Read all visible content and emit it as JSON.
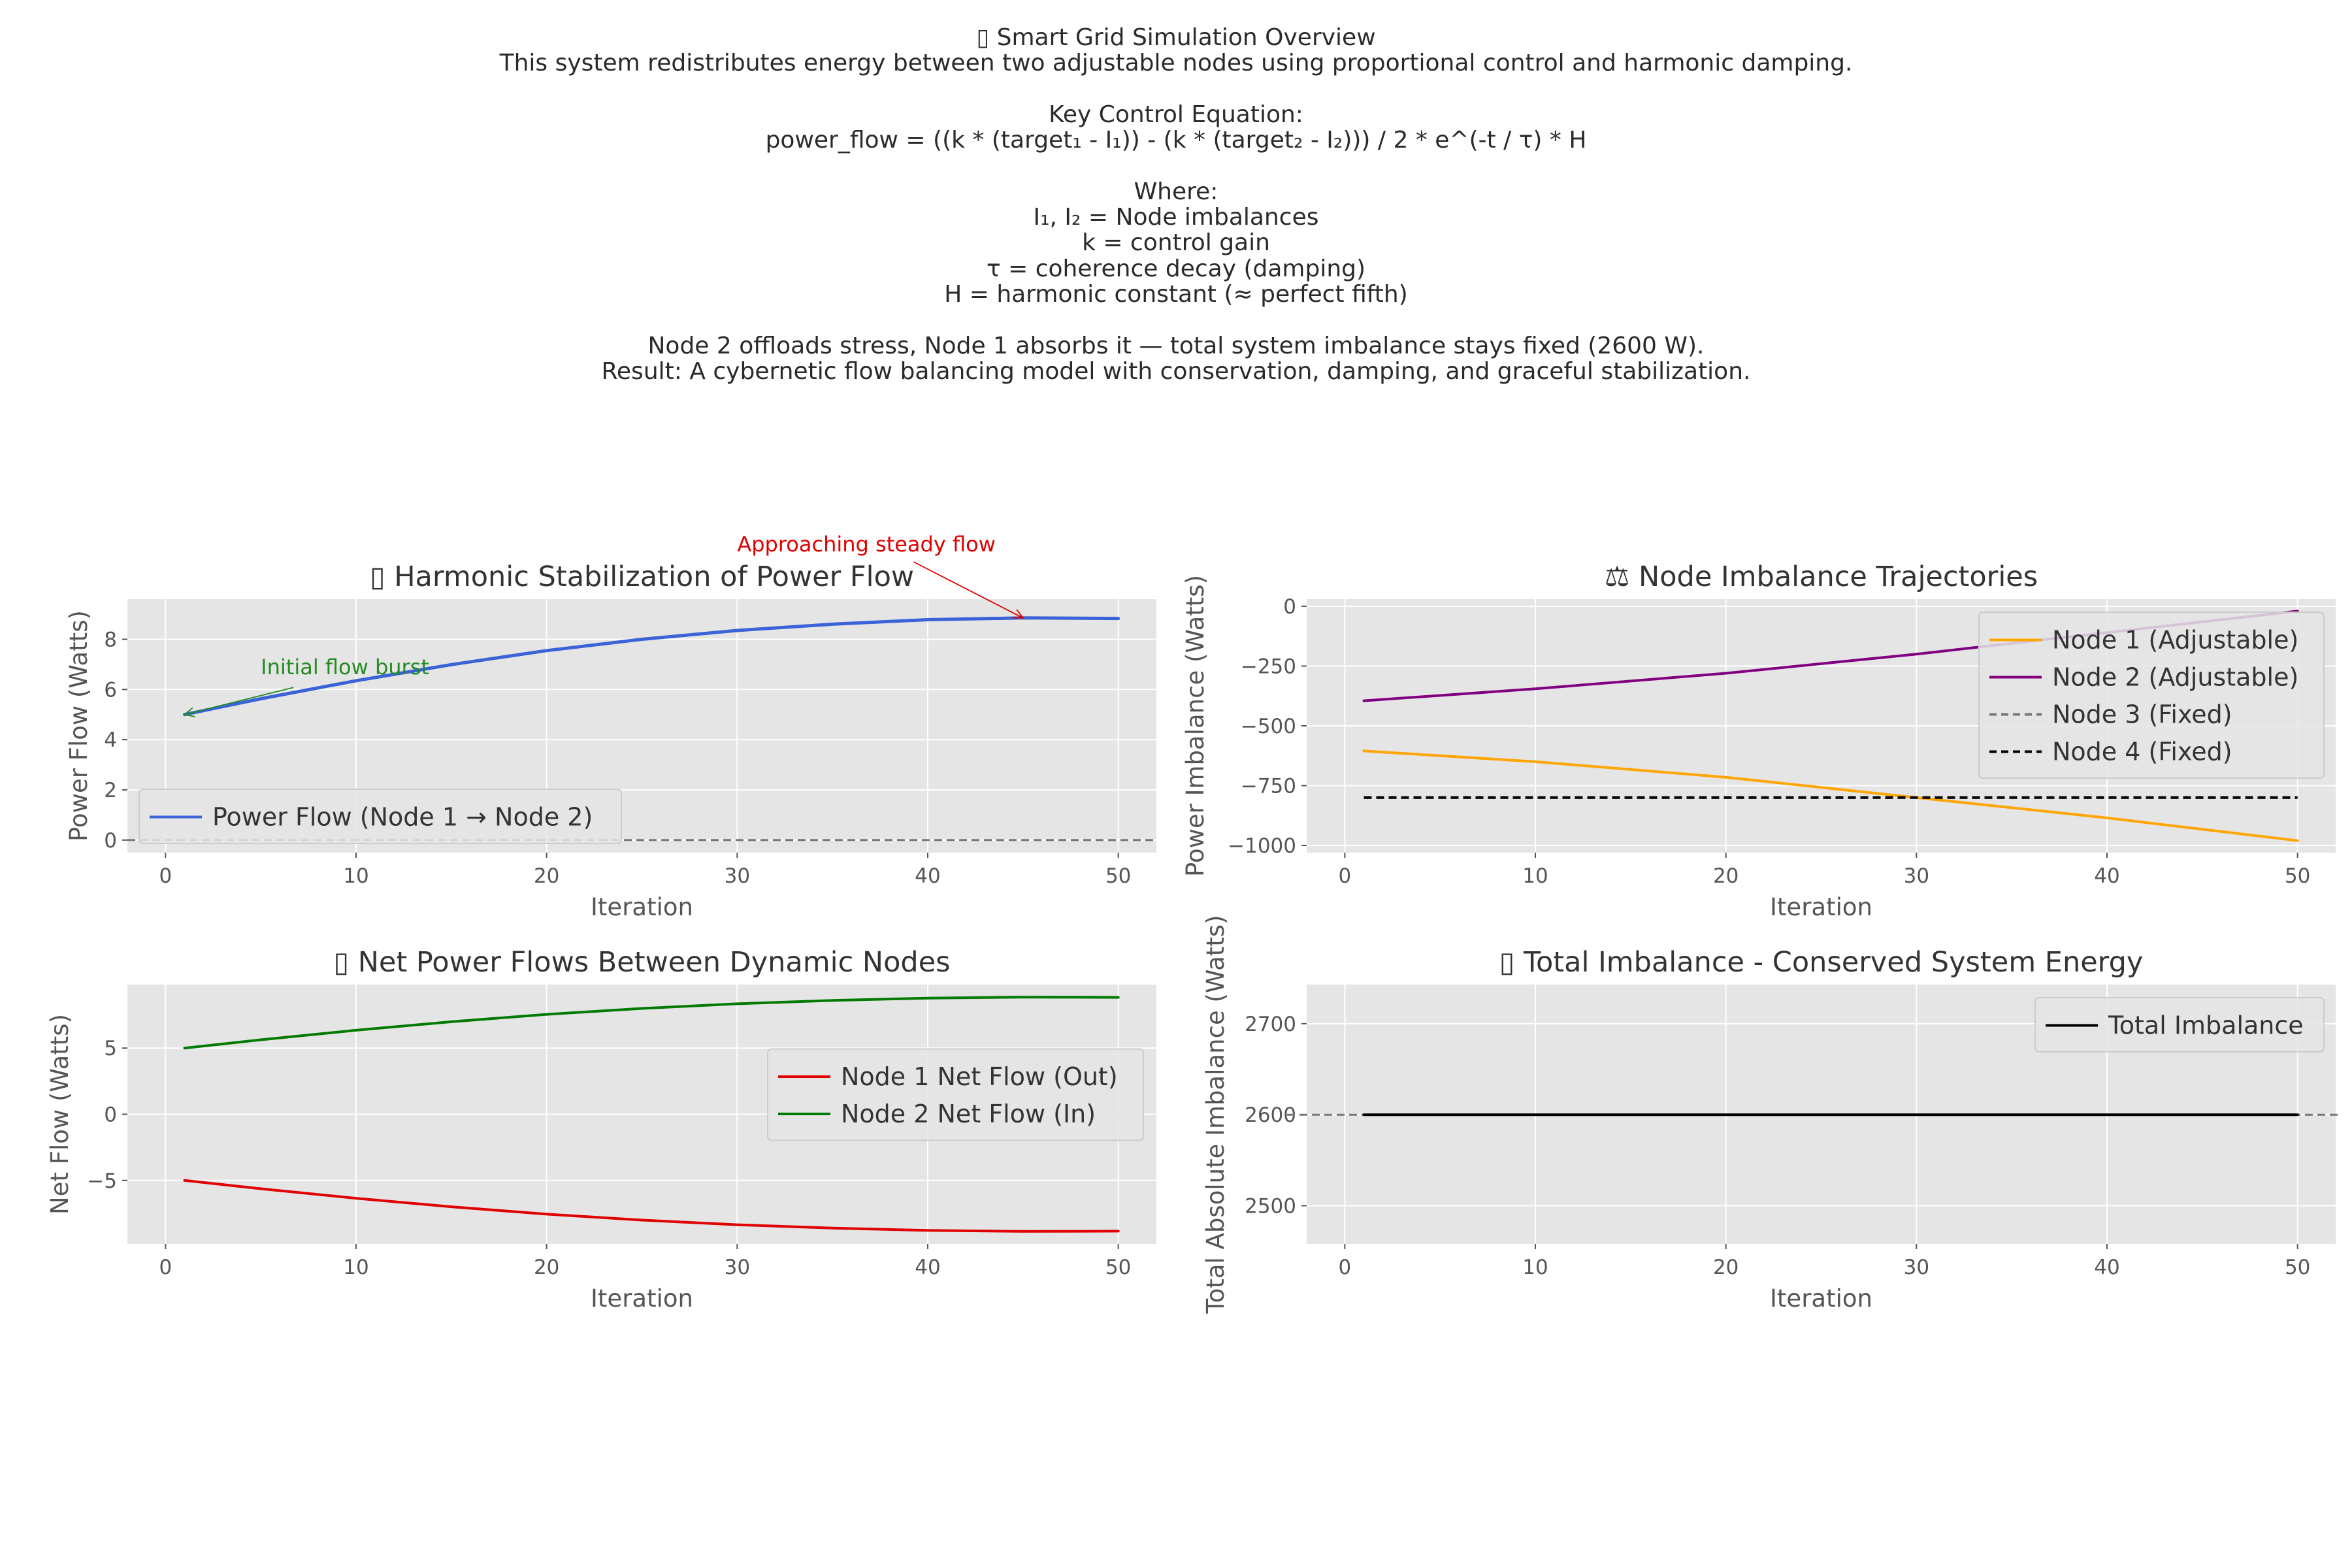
{
  "header": {
    "lines": [
      "▯ Smart Grid Simulation Overview",
      "This system redistributes energy between two adjustable nodes using proportional control and harmonic damping.",
      "",
      "Key Control Equation:",
      "power_flow = ((k * (target₁ - I₁)) - (k * (target₂ - I₂))) / 2 * e^(-t / τ) * H",
      "",
      "Where:",
      "I₁, I₂ = Node imbalances",
      "k = control gain",
      "τ = coherence decay (damping)",
      "H = harmonic constant (≈ perfect fifth)",
      "",
      "Node 2 offloads stress, Node 1 absorbs it — total system imbalance stays fixed (2600 W).",
      "Result: A cybernetic flow balancing model with conservation, damping, and graceful stabilization."
    ]
  },
  "colors": {
    "plot_bg": "#e5e5e5",
    "grid": "#ffffff",
    "text": "#555555",
    "title": "#333333"
  },
  "chart_data": [
    {
      "type": "line",
      "title": "▯ Harmonic Stabilization of Power Flow",
      "xlabel": "Iteration",
      "ylabel": "Power Flow (Watts)",
      "xlim": [
        -2,
        52
      ],
      "ylim": [
        -0.5,
        9.6
      ],
      "xticks": [
        0,
        10,
        20,
        30,
        40,
        50
      ],
      "yticks": [
        0,
        2,
        4,
        6,
        8
      ],
      "grid": true,
      "legend": "lower left",
      "series": [
        {
          "name": "Power Flow (Node 1 → Node 2)",
          "color": "#3a63d8",
          "dash": "solid",
          "x": [
            1,
            5,
            10,
            15,
            20,
            25,
            30,
            35,
            40,
            45,
            50
          ],
          "y": [
            5.0,
            5.63,
            6.35,
            6.99,
            7.55,
            8.0,
            8.35,
            8.6,
            8.78,
            8.85,
            8.83
          ]
        }
      ],
      "hlines": [
        {
          "y": 0,
          "color": "#777777",
          "dash": "dashed"
        }
      ],
      "annotations": [
        {
          "text": "Initial flow burst",
          "color": "#228b22",
          "x": 5,
          "y": 6.6,
          "point_x": 1,
          "point_y": 5.0
        },
        {
          "text": "Approaching steady flow",
          "color": "#e00000",
          "x": 30,
          "y": 11.5,
          "point_x": 45,
          "point_y": 8.85
        }
      ]
    },
    {
      "type": "line",
      "title": "⚖ Node Imbalance Trajectories",
      "xlabel": "Iteration",
      "ylabel": "Power Imbalance (Watts)",
      "xlim": [
        -2,
        52
      ],
      "ylim": [
        -1030,
        30
      ],
      "xticks": [
        0,
        10,
        20,
        30,
        40,
        50
      ],
      "yticks": [
        0,
        -250,
        -500,
        -750,
        -1000
      ],
      "grid": true,
      "legend": "upper right",
      "series": [
        {
          "name": "Node 1 (Adjustable)",
          "color": "#ffa500",
          "dash": "solid",
          "x": [
            1,
            10,
            20,
            30,
            40,
            50
          ],
          "y": [
            -605,
            -650,
            -715,
            -800,
            -885,
            -980
          ]
        },
        {
          "name": "Node 2 (Adjustable)",
          "color": "#800080",
          "dash": "solid",
          "x": [
            1,
            10,
            20,
            30,
            40,
            50
          ],
          "y": [
            -395,
            -345,
            -280,
            -200,
            -110,
            -20
          ]
        },
        {
          "name": "Node 3 (Fixed)",
          "color": "#777777",
          "dash": "dashed",
          "x": [
            1,
            50
          ],
          "y": [
            -800,
            -800
          ]
        },
        {
          "name": "Node 4 (Fixed)",
          "color": "#000000",
          "dash": "dashed",
          "x": [
            1,
            50
          ],
          "y": [
            -800,
            -800
          ]
        }
      ]
    },
    {
      "type": "line",
      "title": "▯ Net Power Flows Between Dynamic Nodes",
      "xlabel": "Iteration",
      "ylabel": "Net Flow (Watts)",
      "xlim": [
        -2,
        52
      ],
      "ylim": [
        -9.8,
        9.8
      ],
      "xticks": [
        0,
        10,
        20,
        30,
        40,
        50
      ],
      "yticks": [
        5,
        0,
        -5
      ],
      "grid": true,
      "legend": "center right",
      "series": [
        {
          "name": "Node 1 Net Flow (Out)",
          "color": "#e00000",
          "dash": "solid",
          "x": [
            1,
            5,
            10,
            15,
            20,
            25,
            30,
            35,
            40,
            45,
            50
          ],
          "y": [
            -5.0,
            -5.63,
            -6.35,
            -6.99,
            -7.55,
            -8.0,
            -8.35,
            -8.6,
            -8.78,
            -8.85,
            -8.83
          ]
        },
        {
          "name": "Node 2 Net Flow (In)",
          "color": "#007a00",
          "dash": "solid",
          "x": [
            1,
            5,
            10,
            15,
            20,
            25,
            30,
            35,
            40,
            45,
            50
          ],
          "y": [
            5.0,
            5.63,
            6.35,
            6.99,
            7.55,
            8.0,
            8.35,
            8.6,
            8.78,
            8.85,
            8.83
          ]
        }
      ]
    },
    {
      "type": "line",
      "title": "▯ Total Imbalance - Conserved System Energy",
      "xlabel": "Iteration",
      "ylabel": "Total Absolute Imbalance (Watts)",
      "xlim": [
        -2,
        52
      ],
      "ylim": [
        2458,
        2743
      ],
      "xticks": [
        0,
        10,
        20,
        30,
        40,
        50
      ],
      "yticks": [
        2700,
        2600,
        2500
      ],
      "grid": true,
      "legend": "upper right",
      "series": [
        {
          "name": "Total Imbalance",
          "color": "#000000",
          "dash": "solid",
          "x": [
            1,
            50
          ],
          "y": [
            2600,
            2600
          ]
        }
      ],
      "hlines": [
        {
          "y": 2600,
          "color": "#777777",
          "dash": "dashed"
        }
      ]
    }
  ]
}
